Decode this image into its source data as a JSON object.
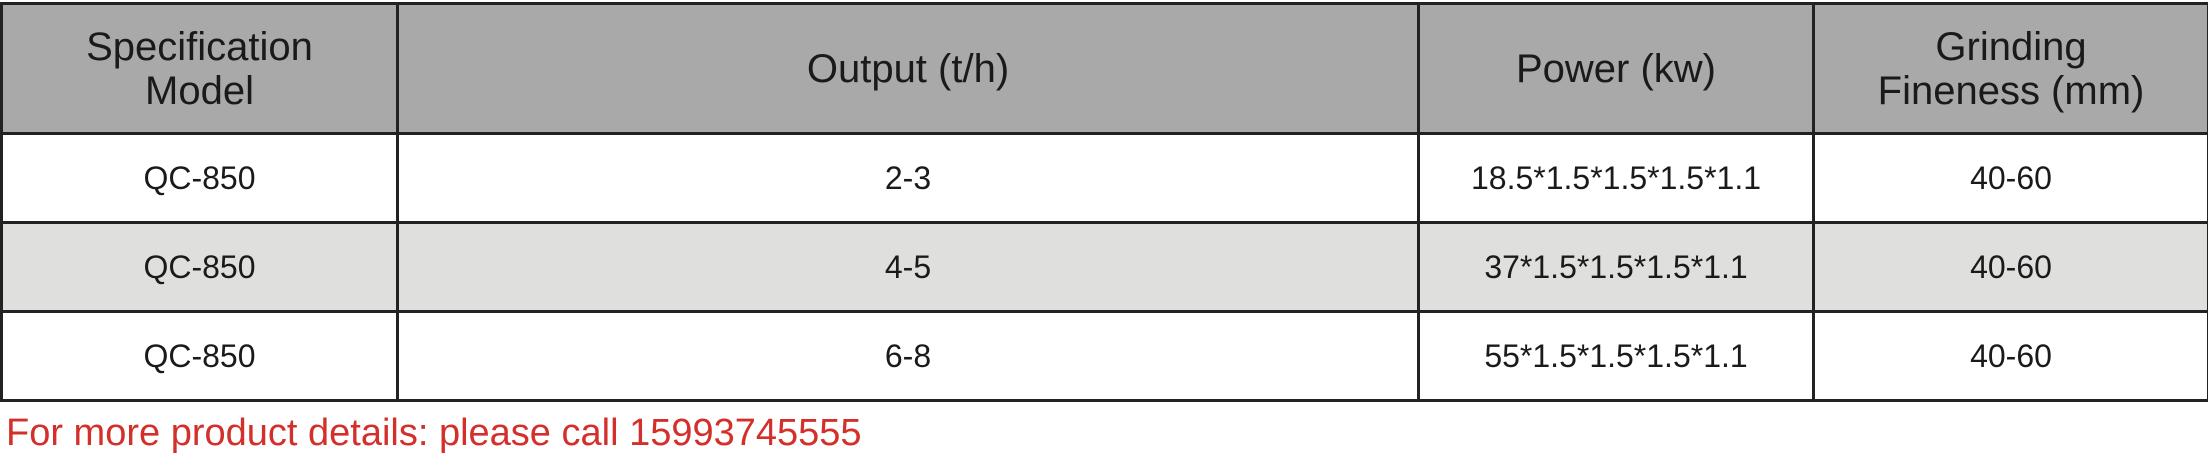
{
  "table": {
    "headers": [
      [
        "Specification",
        "Model"
      ],
      [
        "Output (t/h)"
      ],
      [
        "Power (kw)"
      ],
      [
        "Grinding",
        "Fineness (mm)"
      ]
    ],
    "rows": [
      {
        "model": "QC-850",
        "output": "2-3",
        "power": "18.5*1.5*1.5*1.5*1.1",
        "fineness": "40-60"
      },
      {
        "model": "QC-850",
        "output": "4-5",
        "power": "37*1.5*1.5*1.5*1.1",
        "fineness": "40-60"
      },
      {
        "model": "QC-850",
        "output": "6-8",
        "power": "55*1.5*1.5*1.5*1.1",
        "fineness": "40-60"
      }
    ]
  },
  "footer_note": "For more product details: please call 15993745555",
  "colors": {
    "header_bg": "#a9a9a9",
    "alt_row_bg": "#dfdfde",
    "note_red": "#d3302c"
  }
}
